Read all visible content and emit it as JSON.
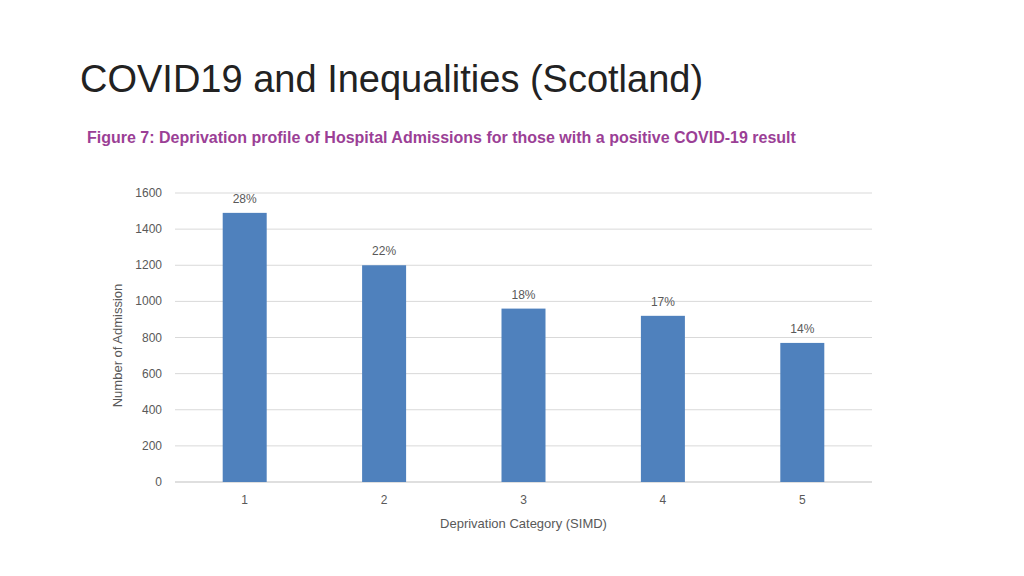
{
  "chart_data": {
    "type": "bar",
    "title": "COVID19 and Inequalities (Scotland)",
    "subtitle": "Figure 7: Deprivation profile of Hospital Admissions for those with a positive COVID-19 result",
    "x_label": "Deprivation Category (SIMD)",
    "y_label": "Number of Admission",
    "categories": [
      "1",
      "2",
      "3",
      "4",
      "5"
    ],
    "values": [
      1490,
      1200,
      960,
      920,
      770
    ],
    "annotations": [
      "28%",
      "22%",
      "18%",
      "17%",
      "14%"
    ],
    "color": "#4f81bd",
    "ylim": [
      0,
      1600
    ],
    "yticks": [
      0,
      200,
      400,
      600,
      800,
      1000,
      1200,
      1400,
      1600
    ],
    "grid": true
  }
}
